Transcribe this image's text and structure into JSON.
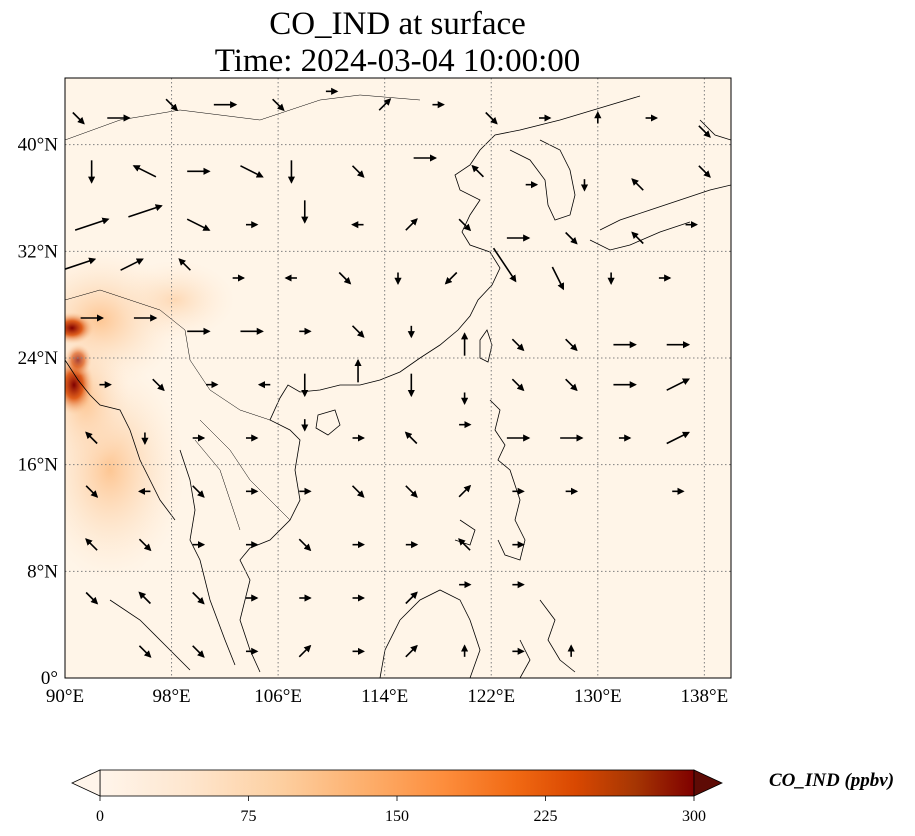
{
  "title": {
    "line1": "CO_IND at surface",
    "line2": "Time: 2024-03-04 10:00:00"
  },
  "map": {
    "lon_range": [
      90,
      140
    ],
    "lat_range": [
      0,
      45
    ],
    "lon_ticks": [
      "90°E",
      "98°E",
      "106°E",
      "114°E",
      "122°E",
      "130°E",
      "138°E"
    ],
    "lat_ticks": [
      "0°",
      "8°N",
      "16°N",
      "24°N",
      "32°N",
      "40°N"
    ],
    "gridlines": "dotted",
    "field": "CO_IND",
    "high_region": "India–Myanmar border (left edge, ~21–28°N)",
    "colors": {
      "land_sea_fill": "#fff5e8",
      "coast": "#000000"
    },
    "hotspots": [
      {
        "lon": 90.5,
        "lat": 26.5,
        "value": 300
      },
      {
        "lon": 91.0,
        "lat": 22.5,
        "value": 290
      },
      {
        "lon": 91.5,
        "lat": 24.0,
        "value": 200
      },
      {
        "lon": 92.5,
        "lat": 20.0,
        "value": 120
      },
      {
        "lon": 93.0,
        "lat": 15.0,
        "value": 60
      },
      {
        "lon": 96.0,
        "lat": 18.0,
        "value": 40
      },
      {
        "lon": 100.0,
        "lat": 28.0,
        "value": 25
      }
    ]
  },
  "colorbar": {
    "label": "CO_IND (ppbv)",
    "min": 0,
    "max": 300,
    "ticks": [
      "0",
      "75",
      "150",
      "225",
      "300"
    ],
    "extend": "both",
    "cmap": [
      "#fff5eb",
      "#fee6ce",
      "#fdd0a2",
      "#fdae6b",
      "#fd8d3c",
      "#f16913",
      "#d94801",
      "#a63603",
      "#7f2704",
      "#5e0b05"
    ]
  },
  "wind_vectors": [
    {
      "lon": 91,
      "lat": 42,
      "u": 1,
      "v": -1
    },
    {
      "lon": 94,
      "lat": 42,
      "u": 2,
      "v": 0
    },
    {
      "lon": 98,
      "lat": 43,
      "u": 1,
      "v": -1
    },
    {
      "lon": 102,
      "lat": 43,
      "u": 2,
      "v": 0
    },
    {
      "lon": 106,
      "lat": 43,
      "u": 1,
      "v": -1
    },
    {
      "lon": 110,
      "lat": 44,
      "u": 1,
      "v": 0
    },
    {
      "lon": 114,
      "lat": 43,
      "u": 1,
      "v": 1
    },
    {
      "lon": 118,
      "lat": 43,
      "u": 1,
      "v": 0
    },
    {
      "lon": 122,
      "lat": 42,
      "u": 1,
      "v": -1
    },
    {
      "lon": 126,
      "lat": 42,
      "u": 1,
      "v": 0
    },
    {
      "lon": 130,
      "lat": 42,
      "u": 0,
      "v": 1
    },
    {
      "lon": 134,
      "lat": 42,
      "u": 1,
      "v": 0
    },
    {
      "lon": 138,
      "lat": 41,
      "u": 1,
      "v": -1
    },
    {
      "lon": 92,
      "lat": 38,
      "u": 0,
      "v": -2
    },
    {
      "lon": 96,
      "lat": 38,
      "u": -2,
      "v": 1
    },
    {
      "lon": 100,
      "lat": 38,
      "u": 2,
      "v": 0
    },
    {
      "lon": 104,
      "lat": 38,
      "u": 2,
      "v": -1
    },
    {
      "lon": 107,
      "lat": 38,
      "u": 0,
      "v": -2
    },
    {
      "lon": 112,
      "lat": 38,
      "u": 1,
      "v": -1
    },
    {
      "lon": 117,
      "lat": 39,
      "u": 2,
      "v": 0
    },
    {
      "lon": 121,
      "lat": 38,
      "u": -1,
      "v": 1
    },
    {
      "lon": 125,
      "lat": 37,
      "u": 1,
      "v": 0
    },
    {
      "lon": 129,
      "lat": 37,
      "u": 0,
      "v": -1
    },
    {
      "lon": 133,
      "lat": 37,
      "u": -1,
      "v": 1
    },
    {
      "lon": 138,
      "lat": 38,
      "u": 1,
      "v": -1
    },
    {
      "lon": 92,
      "lat": 34,
      "u": 3,
      "v": 1
    },
    {
      "lon": 96,
      "lat": 35,
      "u": 3,
      "v": 1
    },
    {
      "lon": 100,
      "lat": 34,
      "u": 2,
      "v": -1
    },
    {
      "lon": 104,
      "lat": 34,
      "u": 1,
      "v": 0
    },
    {
      "lon": 108,
      "lat": 35,
      "u": 0,
      "v": -2
    },
    {
      "lon": 112,
      "lat": 34,
      "u": -1,
      "v": 0
    },
    {
      "lon": 116,
      "lat": 34,
      "u": 1,
      "v": 1
    },
    {
      "lon": 120,
      "lat": 34,
      "u": 1,
      "v": -1
    },
    {
      "lon": 124,
      "lat": 33,
      "u": 2,
      "v": 0
    },
    {
      "lon": 128,
      "lat": 33,
      "u": 1,
      "v": -1
    },
    {
      "lon": 133,
      "lat": 33,
      "u": -1,
      "v": 1
    },
    {
      "lon": 137,
      "lat": 34,
      "u": 1,
      "v": 0
    },
    {
      "lon": 91,
      "lat": 31,
      "u": 3,
      "v": 1
    },
    {
      "lon": 95,
      "lat": 31,
      "u": 2,
      "v": 1
    },
    {
      "lon": 99,
      "lat": 31,
      "u": -1,
      "v": 1
    },
    {
      "lon": 103,
      "lat": 30,
      "u": 1,
      "v": 0
    },
    {
      "lon": 107,
      "lat": 30,
      "u": -1,
      "v": 0
    },
    {
      "lon": 111,
      "lat": 30,
      "u": 1,
      "v": -1
    },
    {
      "lon": 115,
      "lat": 30,
      "u": 0,
      "v": -1
    },
    {
      "lon": 119,
      "lat": 30,
      "u": -1,
      "v": -1
    },
    {
      "lon": 123,
      "lat": 31,
      "u": 2,
      "v": -3
    },
    {
      "lon": 127,
      "lat": 30,
      "u": 1,
      "v": -2
    },
    {
      "lon": 131,
      "lat": 30,
      "u": 0,
      "v": -1
    },
    {
      "lon": 135,
      "lat": 30,
      "u": 1,
      "v": 0
    },
    {
      "lon": 92,
      "lat": 27,
      "u": 2,
      "v": 0
    },
    {
      "lon": 96,
      "lat": 27,
      "u": 2,
      "v": 0
    },
    {
      "lon": 100,
      "lat": 26,
      "u": 2,
      "v": 0
    },
    {
      "lon": 104,
      "lat": 26,
      "u": 2,
      "v": 0
    },
    {
      "lon": 108,
      "lat": 26,
      "u": 1,
      "v": 0
    },
    {
      "lon": 112,
      "lat": 26,
      "u": 1,
      "v": -1
    },
    {
      "lon": 116,
      "lat": 26,
      "u": 0,
      "v": -1
    },
    {
      "lon": 120,
      "lat": 25,
      "u": 0,
      "v": 2
    },
    {
      "lon": 124,
      "lat": 25,
      "u": 1,
      "v": -1
    },
    {
      "lon": 128,
      "lat": 25,
      "u": 1,
      "v": -1
    },
    {
      "lon": 132,
      "lat": 25,
      "u": 2,
      "v": 0
    },
    {
      "lon": 136,
      "lat": 25,
      "u": 2,
      "v": 0
    },
    {
      "lon": 93,
      "lat": 22,
      "u": 1,
      "v": 0
    },
    {
      "lon": 97,
      "lat": 22,
      "u": 1,
      "v": -1
    },
    {
      "lon": 101,
      "lat": 22,
      "u": 1,
      "v": 0
    },
    {
      "lon": 105,
      "lat": 22,
      "u": -1,
      "v": 0
    },
    {
      "lon": 108,
      "lat": 22,
      "u": 0,
      "v": -2
    },
    {
      "lon": 112,
      "lat": 23,
      "u": 0,
      "v": 2
    },
    {
      "lon": 116,
      "lat": 22,
      "u": 0,
      "v": -2
    },
    {
      "lon": 120,
      "lat": 21,
      "u": 0,
      "v": -1
    },
    {
      "lon": 124,
      "lat": 22,
      "u": 1,
      "v": -1
    },
    {
      "lon": 128,
      "lat": 22,
      "u": 1,
      "v": -1
    },
    {
      "lon": 132,
      "lat": 22,
      "u": 2,
      "v": 0
    },
    {
      "lon": 136,
      "lat": 22,
      "u": 2,
      "v": 1
    },
    {
      "lon": 92,
      "lat": 18,
      "u": -1,
      "v": 1
    },
    {
      "lon": 96,
      "lat": 18,
      "u": 0,
      "v": -1
    },
    {
      "lon": 100,
      "lat": 18,
      "u": 1,
      "v": 0
    },
    {
      "lon": 104,
      "lat": 18,
      "u": 1,
      "v": 0
    },
    {
      "lon": 108,
      "lat": 19,
      "u": 0,
      "v": -1
    },
    {
      "lon": 112,
      "lat": 18,
      "u": 1,
      "v": 0
    },
    {
      "lon": 116,
      "lat": 18,
      "u": -1,
      "v": 1
    },
    {
      "lon": 120,
      "lat": 19,
      "u": 1,
      "v": 0
    },
    {
      "lon": 124,
      "lat": 18,
      "u": 2,
      "v": 0
    },
    {
      "lon": 128,
      "lat": 18,
      "u": 2,
      "v": 0
    },
    {
      "lon": 132,
      "lat": 18,
      "u": 1,
      "v": 0
    },
    {
      "lon": 136,
      "lat": 18,
      "u": 2,
      "v": 1
    },
    {
      "lon": 92,
      "lat": 14,
      "u": 1,
      "v": -1
    },
    {
      "lon": 96,
      "lat": 14,
      "u": -1,
      "v": 0
    },
    {
      "lon": 100,
      "lat": 14,
      "u": 1,
      "v": -1
    },
    {
      "lon": 104,
      "lat": 14,
      "u": 1,
      "v": 0
    },
    {
      "lon": 108,
      "lat": 14,
      "u": 1,
      "v": 0
    },
    {
      "lon": 112,
      "lat": 14,
      "u": 1,
      "v": -1
    },
    {
      "lon": 116,
      "lat": 14,
      "u": 1,
      "v": -1
    },
    {
      "lon": 120,
      "lat": 14,
      "u": 1,
      "v": 1
    },
    {
      "lon": 124,
      "lat": 14,
      "u": 1,
      "v": 0
    },
    {
      "lon": 128,
      "lat": 14,
      "u": 1,
      "v": 0
    },
    {
      "lon": 136,
      "lat": 14,
      "u": 1,
      "v": 0
    },
    {
      "lon": 92,
      "lat": 10,
      "u": -1,
      "v": 1
    },
    {
      "lon": 96,
      "lat": 10,
      "u": 1,
      "v": -1
    },
    {
      "lon": 100,
      "lat": 10,
      "u": 1,
      "v": 0
    },
    {
      "lon": 104,
      "lat": 10,
      "u": 1,
      "v": 0
    },
    {
      "lon": 108,
      "lat": 10,
      "u": 1,
      "v": -1
    },
    {
      "lon": 112,
      "lat": 10,
      "u": 1,
      "v": 0
    },
    {
      "lon": 116,
      "lat": 10,
      "u": 1,
      "v": 0
    },
    {
      "lon": 120,
      "lat": 10,
      "u": -1,
      "v": 1
    },
    {
      "lon": 124,
      "lat": 10,
      "u": 1,
      "v": 0
    },
    {
      "lon": 92,
      "lat": 6,
      "u": 1,
      "v": -1
    },
    {
      "lon": 96,
      "lat": 6,
      "u": -1,
      "v": 1
    },
    {
      "lon": 100,
      "lat": 6,
      "u": 1,
      "v": -1
    },
    {
      "lon": 104,
      "lat": 6,
      "u": 1,
      "v": 0
    },
    {
      "lon": 108,
      "lat": 6,
      "u": 1,
      "v": 0
    },
    {
      "lon": 112,
      "lat": 6,
      "u": 1,
      "v": 0
    },
    {
      "lon": 116,
      "lat": 6,
      "u": 1,
      "v": 1
    },
    {
      "lon": 120,
      "lat": 7,
      "u": 1,
      "v": 0
    },
    {
      "lon": 124,
      "lat": 7,
      "u": 1,
      "v": 0
    },
    {
      "lon": 96,
      "lat": 2,
      "u": 1,
      "v": -1
    },
    {
      "lon": 100,
      "lat": 2,
      "u": 1,
      "v": -1
    },
    {
      "lon": 104,
      "lat": 2,
      "u": 1,
      "v": 0
    },
    {
      "lon": 108,
      "lat": 2,
      "u": 1,
      "v": 1
    },
    {
      "lon": 112,
      "lat": 2,
      "u": 1,
      "v": 0
    },
    {
      "lon": 116,
      "lat": 2,
      "u": 1,
      "v": 1
    },
    {
      "lon": 120,
      "lat": 2,
      "u": 0,
      "v": 1
    },
    {
      "lon": 124,
      "lat": 2,
      "u": 1,
      "v": 0
    },
    {
      "lon": 128,
      "lat": 2,
      "u": 0,
      "v": 1
    }
  ]
}
